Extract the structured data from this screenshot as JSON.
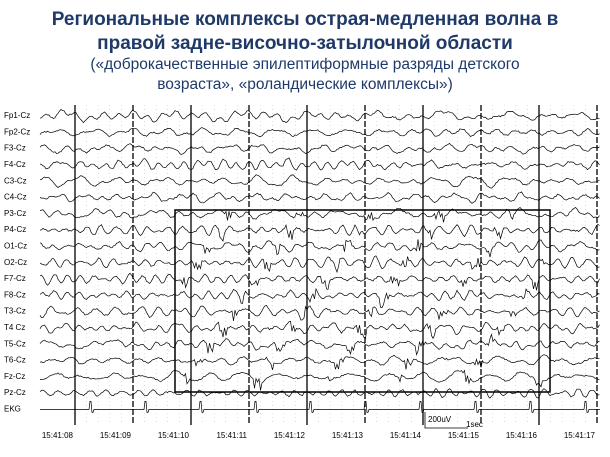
{
  "header": {
    "title_lines": [
      "Региональные комплексы острая-медленная волна в",
      "правой задне-височно-затылочной области"
    ],
    "subtitle_lines": [
      "(«доброкачественные эпилептиформные разряды детского",
      "возраста», «роландические комплексы»)"
    ]
  },
  "channels": [
    "Fp1-Cz",
    "Fp2-Cz",
    "F3-Cz",
    "F4-Cz",
    "C3-Cz",
    "C4-Cz",
    "P3-Cz",
    "P4-Cz",
    "O1-Cz",
    "O2-Cz",
    "F7-Cz",
    "F8-Cz",
    "T3-Cz",
    "T4 Cz",
    "T5-Cz",
    "T6-Cz",
    "Fz-Cz",
    "Pz-Cz",
    "EKG"
  ],
  "time_labels": [
    "15:41:08",
    "15:41:09",
    "15:41:10",
    "15:41:11",
    "15:41:12",
    "15:41:13",
    "15:41:14",
    "15:41:15",
    "15:41:16",
    "15:41:17"
  ],
  "scale": {
    "amplitude": "200uV",
    "time": "1sec"
  }
}
